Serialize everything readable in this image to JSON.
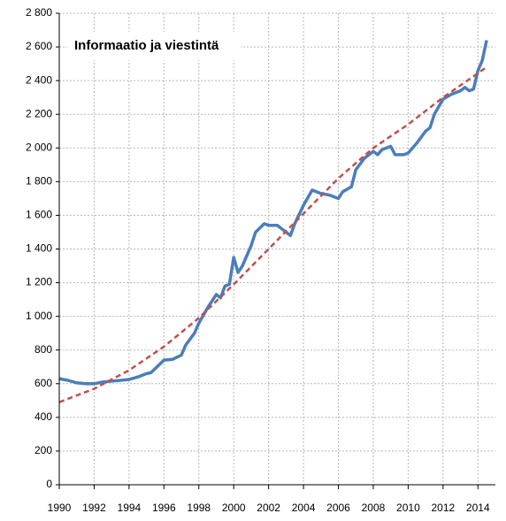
{
  "chart_data": {
    "type": "line",
    "annotation": "Informaatio ja viestintä",
    "xlim": [
      1990,
      2015
    ],
    "xticks": [
      1990,
      1992,
      1994,
      1996,
      1998,
      2000,
      2002,
      2004,
      2006,
      2008,
      2010,
      2012,
      2014
    ],
    "ylim": [
      0,
      2800
    ],
    "yticks": [
      0,
      200,
      400,
      600,
      800,
      {
        "value": 1000,
        "label": "1 000"
      },
      {
        "value": 1200,
        "label": "1 200"
      },
      {
        "value": 1400,
        "label": "1 400"
      },
      {
        "value": 1600,
        "label": "1 600"
      },
      {
        "value": 1800,
        "label": "1 800"
      },
      {
        "value": 2000,
        "label": "2 000"
      },
      {
        "value": 2200,
        "label": "2 200"
      },
      {
        "value": 2400,
        "label": "2 400"
      },
      {
        "value": 2600,
        "label": "2 600"
      },
      {
        "value": 2800,
        "label": "2 800"
      }
    ],
    "grid": true,
    "series": [
      {
        "color": "#4a7ebb",
        "dash": false,
        "x": [
          1990,
          1990.5,
          1991,
          1991.5,
          1992,
          1992.5,
          1993,
          1993.5,
          1994,
          1994.5,
          1995,
          1995.25,
          1995.5,
          1996,
          1996.5,
          1997,
          1997.25,
          1997.75,
          1998,
          1998.5,
          1999,
          1999.25,
          1999.5,
          1999.75,
          2000,
          2000.25,
          2000.5,
          2001,
          2001.25,
          2001.75,
          2002,
          2002.5,
          2003,
          2003.25,
          2003.5,
          2004,
          2004.5,
          2005,
          2005.5,
          2006,
          2006.25,
          2006.75,
          2007,
          2007.5,
          2008,
          2008.25,
          2008.5,
          2009,
          2009.25,
          2009.75,
          2010,
          2010.5,
          2011,
          2011.25,
          2011.5,
          2012,
          2012.5,
          2013,
          2013.25,
          2013.5,
          2013.75,
          2014,
          2014.25,
          2014.5
        ],
        "values": [
          630,
          620,
          605,
          600,
          600,
          610,
          615,
          620,
          625,
          640,
          660,
          665,
          690,
          740,
          745,
          770,
          830,
          900,
          960,
          1050,
          1130,
          1110,
          1180,
          1190,
          1350,
          1260,
          1300,
          1420,
          1500,
          1550,
          1540,
          1540,
          1500,
          1480,
          1550,
          1660,
          1750,
          1730,
          1720,
          1700,
          1740,
          1770,
          1870,
          1940,
          1980,
          1960,
          1990,
          2010,
          1960,
          1960,
          1970,
          2030,
          2100,
          2120,
          2200,
          2290,
          2320,
          2340,
          2360,
          2340,
          2350,
          2460,
          2520,
          2640
        ]
      },
      {
        "color": "#c0504d",
        "dash": true,
        "x": [
          1990,
          1992,
          1994,
          1996,
          1998,
          2000,
          2002,
          2004,
          2006,
          2008,
          2010,
          2012,
          2014.5
        ],
        "values": [
          490,
          570,
          680,
          820,
          990,
          1190,
          1400,
          1610,
          1820,
          2000,
          2140,
          2300,
          2480
        ]
      }
    ]
  }
}
